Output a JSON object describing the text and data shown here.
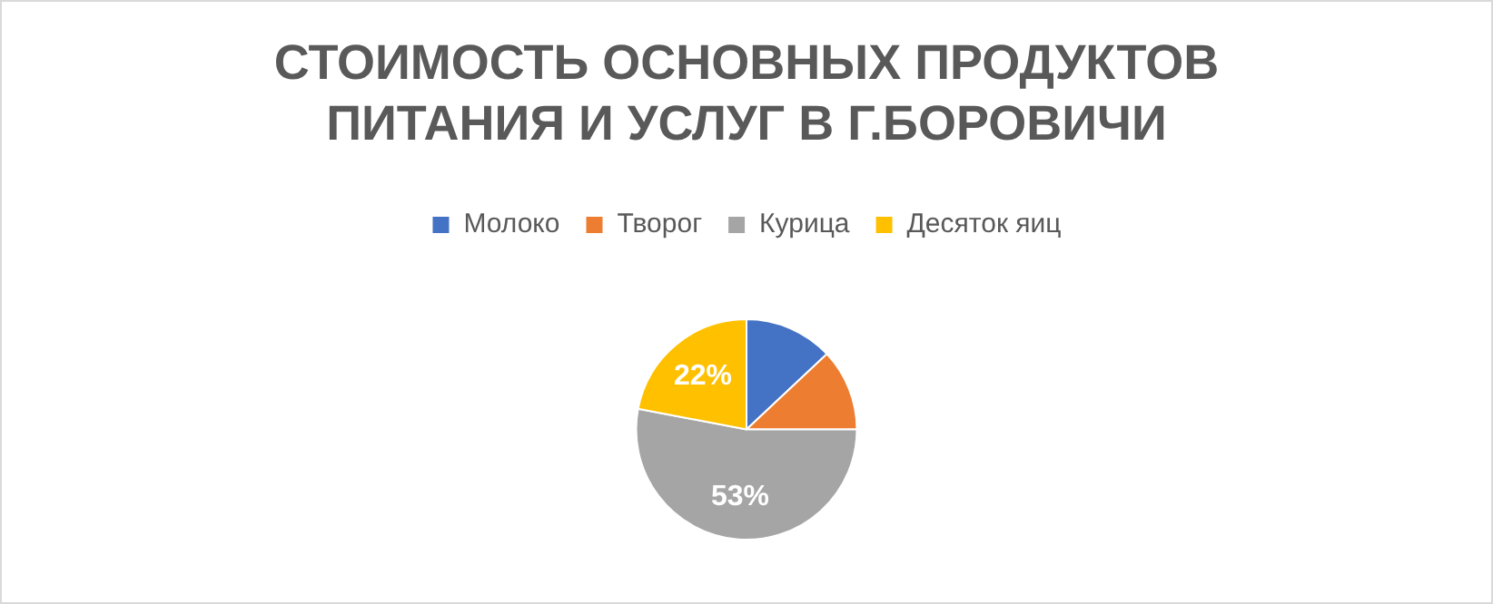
{
  "chart_data": {
    "type": "pie",
    "title": "СТОИМОСТЬ ОСНОВНЫХ ПРОДУКТОВ ПИТАНИЯ И УСЛУГ В Г.БОРОВИЧИ",
    "categories": [
      "Молоко",
      "Творог",
      "Курица",
      "Десяток яиц"
    ],
    "values": [
      13,
      12,
      53,
      22
    ],
    "colors": [
      "#4472c4",
      "#ed7d31",
      "#a5a5a5",
      "#ffc000"
    ],
    "value_labels": [
      null,
      null,
      "53%",
      "22%"
    ],
    "legend": "top"
  }
}
